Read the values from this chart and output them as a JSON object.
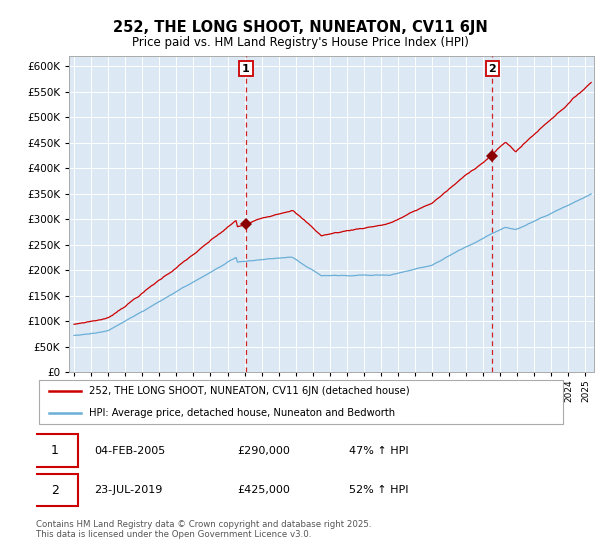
{
  "title": "252, THE LONG SHOOT, NUNEATON, CV11 6JN",
  "subtitle": "Price paid vs. HM Land Registry's House Price Index (HPI)",
  "plot_bg_color": "#dce9f5",
  "grid_color": "#ffffff",
  "red_color": "#cc0000",
  "blue_color": "#6baed6",
  "marker_color": "#8b0000",
  "vline_color": "#cc0000",
  "sale1_x": 2005.08,
  "sale2_x": 2019.54,
  "sale1_price": 290000,
  "sale2_price": 425000,
  "legend1": "252, THE LONG SHOOT, NUNEATON, CV11 6JN (detached house)",
  "legend2": "HPI: Average price, detached house, Nuneaton and Bedworth",
  "footer": "Contains HM Land Registry data © Crown copyright and database right 2025.\nThis data is licensed under the Open Government Licence v3.0.",
  "ylim": [
    0,
    620000
  ],
  "ytick_vals": [
    0,
    50000,
    100000,
    150000,
    200000,
    250000,
    300000,
    350000,
    400000,
    450000,
    500000,
    550000,
    600000
  ],
  "xlim": [
    1994.7,
    2025.5
  ]
}
